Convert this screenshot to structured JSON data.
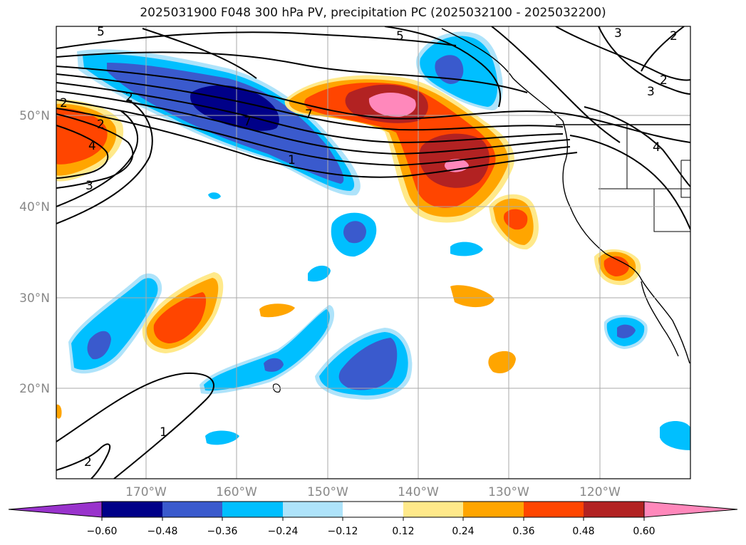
{
  "title": "2025031900 F048 300 hPa PV, precipitation PC (2025032100 - 2025032200)",
  "lat_labels": [
    "50°N",
    "40°N",
    "30°N",
    "20°N"
  ],
  "lon_labels": [
    "170°W",
    "160°W",
    "150°W",
    "140°W",
    "130°W",
    "120°W"
  ],
  "contour_labels": [
    "5",
    "5",
    "2",
    "2",
    "2",
    "3",
    "2",
    "4",
    "3",
    "1",
    "1",
    "2",
    "3",
    "2",
    "4",
    "7",
    "7"
  ],
  "colorbar": {
    "tick_labels": [
      "−0.60",
      "−0.48",
      "−0.36",
      "−0.24",
      "−0.12",
      "0.12",
      "0.24",
      "0.36",
      "0.48",
      "0.60"
    ],
    "colors": [
      "#9933cc",
      "#000088",
      "#3a5acd",
      "#00bfff",
      "#aee3fa",
      "#ffffff",
      "#ffe98a",
      "#ffa500",
      "#ff4500",
      "#b22222",
      "#ff88bb"
    ]
  },
  "colors": {
    "strong_negative": "#000088",
    "negative": "#3a5acd",
    "moderate_negative": "#00bfff",
    "weak_negative": "#aee3fa",
    "weak_positive": "#ffe98a",
    "moderate_positive": "#ffa500",
    "positive": "#ff4500",
    "strong_positive": "#b22222",
    "extreme_positive": "#ff88bb"
  }
}
